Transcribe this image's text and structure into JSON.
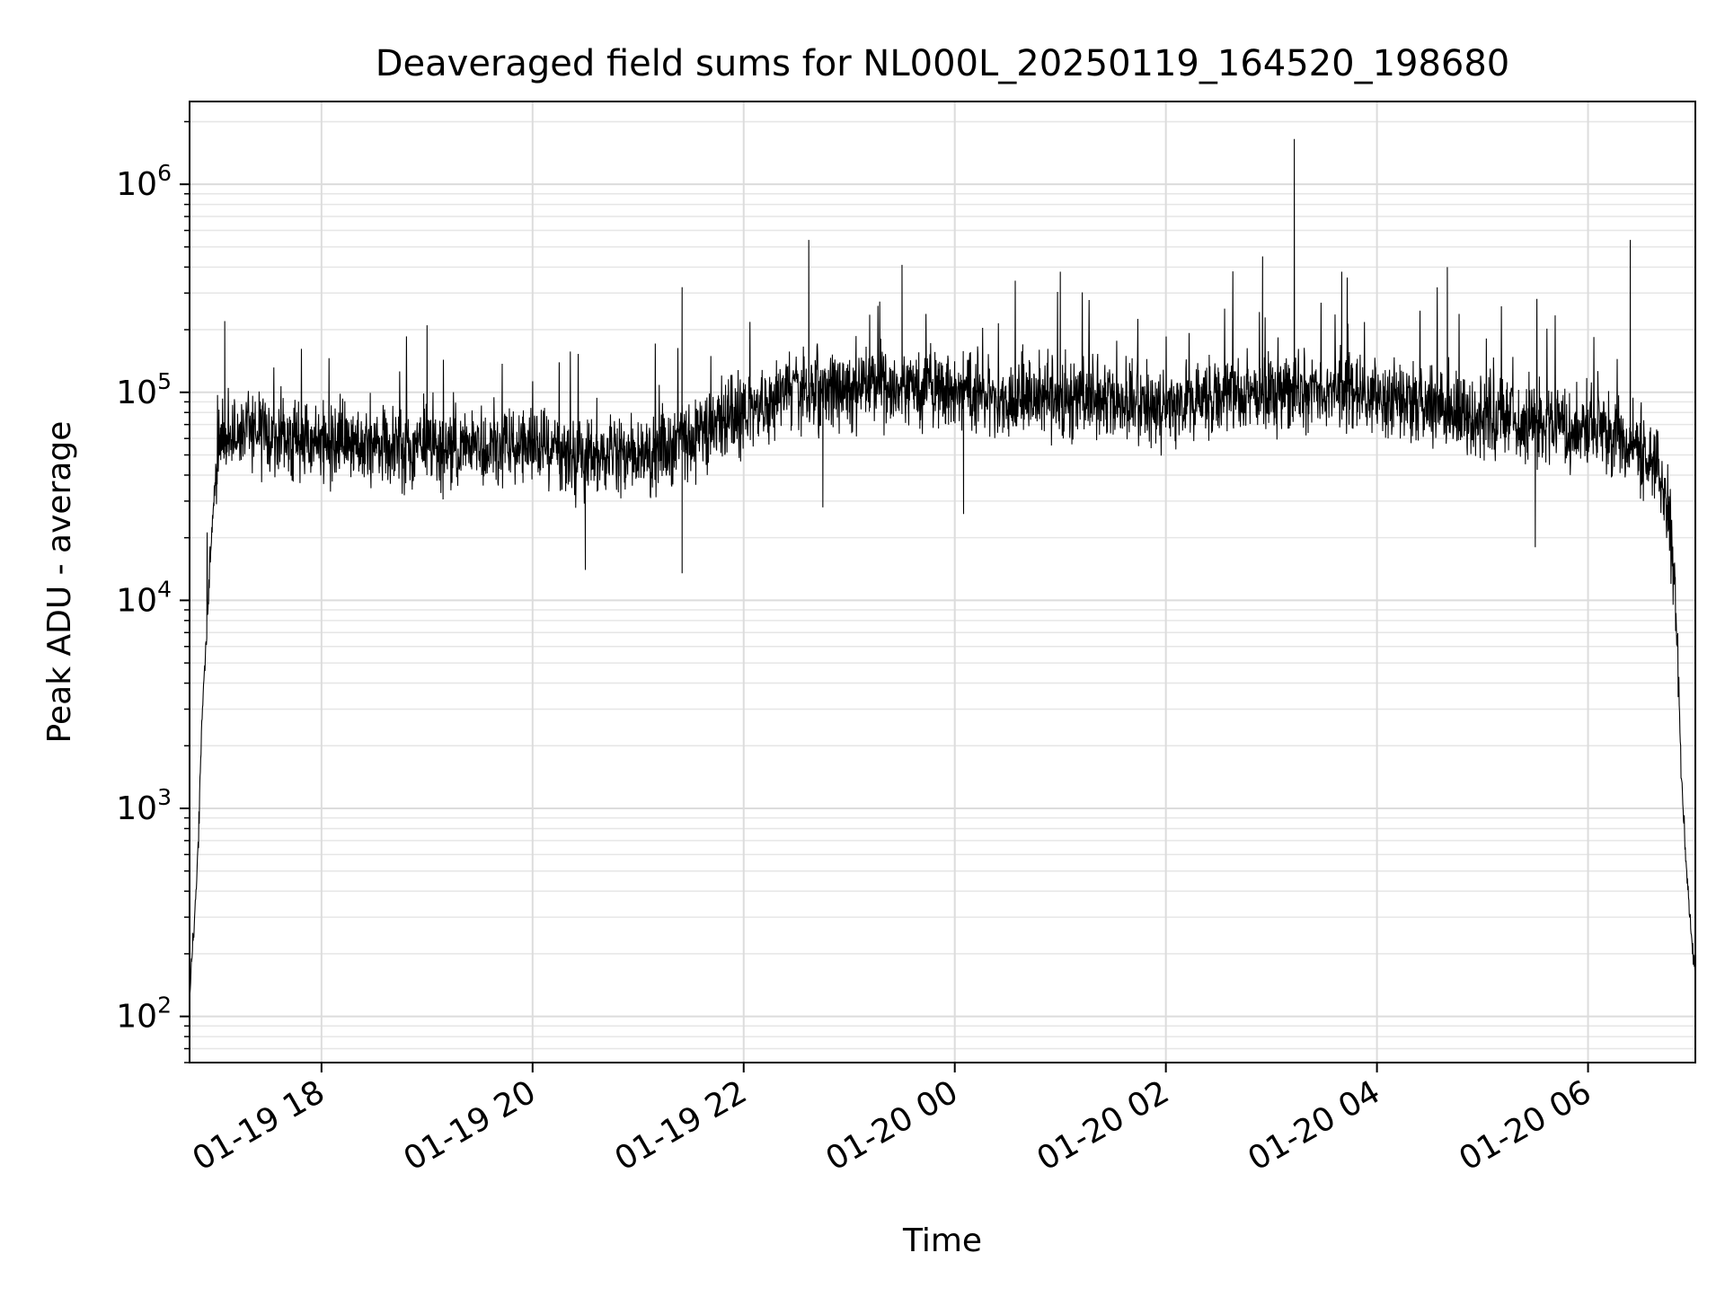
{
  "chart_data": {
    "type": "line",
    "title": "Deaveraged field sums for NL000L_20250119_164520_198680",
    "xlabel": "Time",
    "ylabel": "Peak ADU - average",
    "yscale": "log",
    "ylim": [
      60,
      2500000
    ],
    "xlim": [
      "2025-01-19 16:45",
      "2025-01-20 07:01"
    ],
    "grid": true,
    "line_color": "#000000",
    "x_ticks": [
      {
        "t": "2025-01-19 18:00",
        "label": "01-19 18"
      },
      {
        "t": "2025-01-19 20:00",
        "label": "01-19 20"
      },
      {
        "t": "2025-01-19 22:00",
        "label": "01-19 22"
      },
      {
        "t": "2025-01-20 00:00",
        "label": "01-20 00"
      },
      {
        "t": "2025-01-20 02:00",
        "label": "01-20 02"
      },
      {
        "t": "2025-01-20 04:00",
        "label": "01-20 04"
      },
      {
        "t": "2025-01-20 06:00",
        "label": "01-20 06"
      }
    ],
    "y_ticks": [
      {
        "value": 100,
        "base": "10",
        "exp": "2"
      },
      {
        "value": 1000,
        "base": "10",
        "exp": "3"
      },
      {
        "value": 10000,
        "base": "10",
        "exp": "4"
      },
      {
        "value": 100000,
        "base": "10",
        "exp": "5"
      },
      {
        "value": 1000000,
        "base": "10",
        "exp": "6"
      }
    ],
    "series": [
      {
        "x": [
          "2025-01-19 16:45",
          "2025-01-19 16:46",
          "2025-01-19 16:48",
          "2025-01-19 16:50",
          "2025-01-19 16:52",
          "2025-01-19 16:55",
          "2025-01-19 16:58",
          "2025-01-19 17:01",
          "2025-01-19 17:05",
          "2025-01-19 17:10",
          "2025-01-19 17:20",
          "2025-01-19 17:40",
          "2025-01-19 18:00",
          "2025-01-19 18:30",
          "2025-01-19 19:00",
          "2025-01-19 19:30",
          "2025-01-19 20:00",
          "2025-01-19 20:30",
          "2025-01-19 21:00",
          "2025-01-19 21:30",
          "2025-01-19 22:00",
          "2025-01-19 22:30",
          "2025-01-19 23:00",
          "2025-01-19 23:30",
          "2025-01-20 00:00",
          "2025-01-20 00:30",
          "2025-01-20 01:00",
          "2025-01-20 01:30",
          "2025-01-20 02:00",
          "2025-01-20 02:30",
          "2025-01-20 03:00",
          "2025-01-20 03:30",
          "2025-01-20 04:00",
          "2025-01-20 04:30",
          "2025-01-20 05:00",
          "2025-01-20 05:30",
          "2025-01-20 06:00",
          "2025-01-20 06:20",
          "2025-01-20 06:40",
          "2025-01-20 06:46",
          "2025-01-20 06:50",
          "2025-01-20 06:53",
          "2025-01-20 06:56",
          "2025-01-20 06:58",
          "2025-01-20 07:00"
        ],
        "y": [
          110,
          180,
          300,
          700,
          2500,
          8000,
          25000,
          50000,
          60000,
          65000,
          65000,
          60000,
          60000,
          55000,
          55000,
          55000,
          55000,
          50000,
          50000,
          60000,
          80000,
          100000,
          110000,
          105000,
          100000,
          95000,
          95000,
          90000,
          85000,
          95000,
          100000,
          100000,
          95000,
          85000,
          75000,
          70000,
          65000,
          60000,
          45000,
          25000,
          9000,
          1500,
          500,
          300,
          170
        ],
        "noise_decades": 0.28,
        "spikes": [
          {
            "t": "2025-01-19 22:37",
            "y": 540000
          },
          {
            "t": "2025-01-20 03:13",
            "y": 1650000
          },
          {
            "t": "2025-01-20 06:24",
            "y": 540000
          },
          {
            "t": "2025-01-20 02:55",
            "y": 450000
          },
          {
            "t": "2025-01-19 23:30",
            "y": 410000
          },
          {
            "t": "2025-01-20 01:00",
            "y": 380000
          },
          {
            "t": "2025-01-20 04:40",
            "y": 400000
          },
          {
            "t": "2025-01-20 03:40",
            "y": 380000
          },
          {
            "t": "2025-01-19 21:25",
            "y": 320000
          },
          {
            "t": "2025-01-19 19:00",
            "y": 210000
          },
          {
            "t": "2025-01-19 17:05",
            "y": 220000
          },
          {
            "t": "2025-01-19 21:25",
            "y": 13500
          },
          {
            "t": "2025-01-19 20:30",
            "y": 14000
          },
          {
            "t": "2025-01-19 22:45",
            "y": 28000
          },
          {
            "t": "2025-01-20 00:05",
            "y": 26000
          },
          {
            "t": "2025-01-20 05:30",
            "y": 18000
          }
        ]
      }
    ]
  }
}
